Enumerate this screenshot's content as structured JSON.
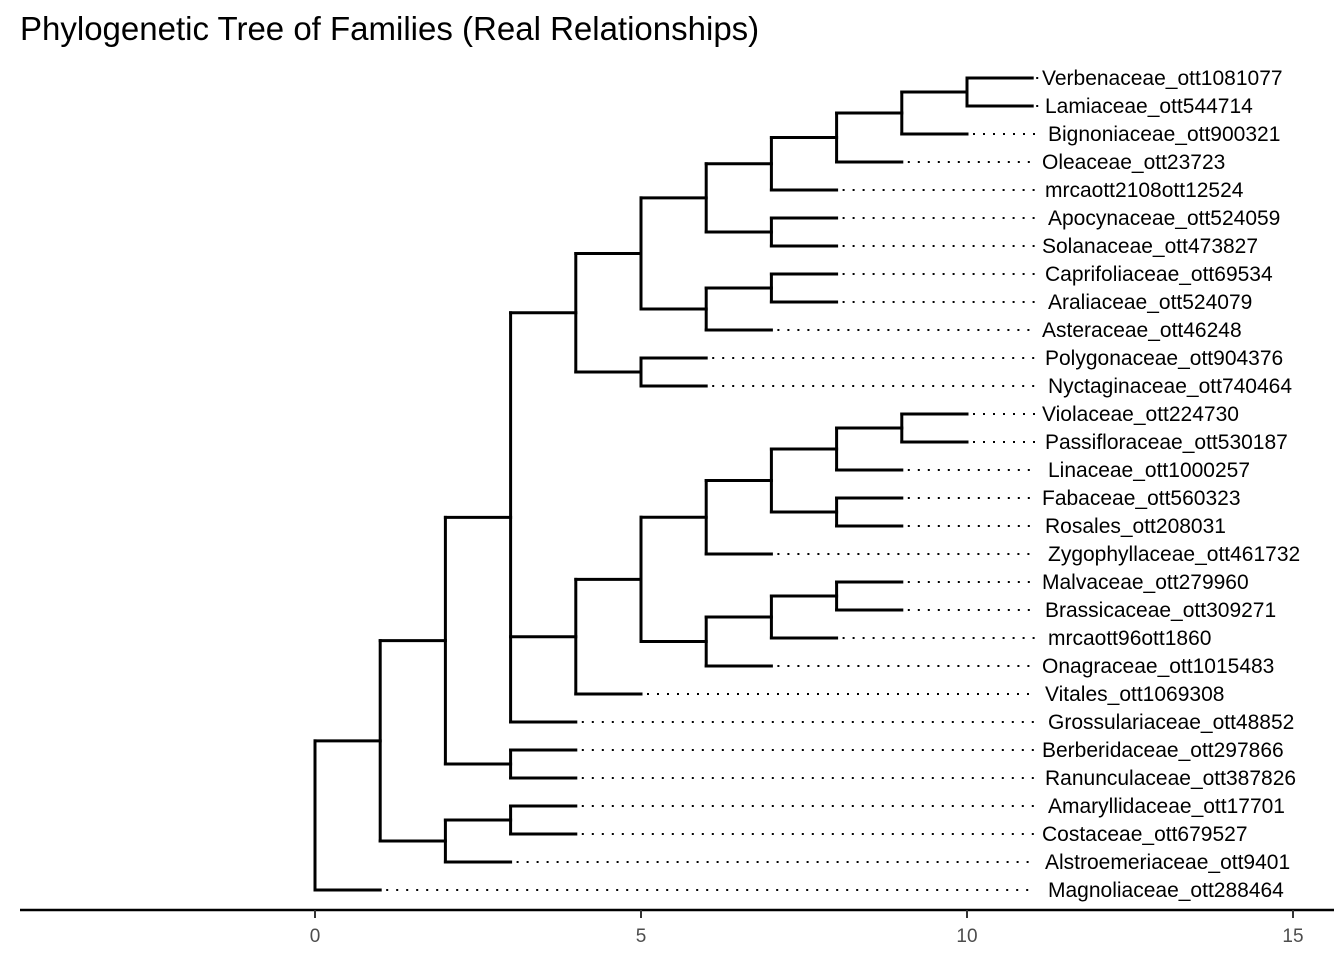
{
  "title": "Phylogenetic Tree of Families (Real Relationships)",
  "axis": {
    "x_range": [
      -4.5,
      15.5
    ],
    "ticks": [
      0,
      5,
      10,
      15
    ]
  },
  "tips": [
    "Verbenaceae_ott1081077",
    "Lamiaceae_ott544714",
    "Bignoniaceae_ott900321",
    "Oleaceae_ott23723",
    "mrcaott2108ott12524",
    "Apocynaceae_ott524059",
    "Solanaceae_ott473827",
    "Caprifoliaceae_ott69534",
    "Araliaceae_ott524079",
    "Asteraceae_ott46248",
    "Polygonaceae_ott904376",
    "Nyctaginaceae_ott740464",
    "Violaceae_ott224730",
    "Passifloraceae_ott530187",
    "Linaceae_ott1000257",
    "Fabaceae_ott560323",
    "Rosales_ott208031",
    "Zygophyllaceae_ott461732",
    "Malvaceae_ott279960",
    "Brassicaceae_ott309271",
    "mrcaott96ott1860",
    "Onagraceae_ott1015483",
    "Vitales_ott1069308",
    "Grossulariaceae_ott48852",
    "Berberidaceae_ott297866",
    "Ranunculaceae_ott387826",
    "Amaryllidaceae_ott17701",
    "Costaceae_ott679527",
    "Alstroemeriaceae_ott9401",
    "Magnoliaceae_ott288464"
  ],
  "tree": {
    "children": [
      {
        "children": [
          {
            "children": [
              {
                "children": [
                  {
                    "children": [
                      {
                        "children": [
                          {
                            "children": [
                              {
                                "children": [
                                  {
                                    "children": [
                                      {
                                        "children": [
                                          {
                                            "tip": 0
                                          },
                                          {
                                            "tip": 1
                                          }
                                        ]
                                      },
                                      {
                                        "tip": 2
                                      }
                                    ]
                                  },
                                  {
                                    "tip": 3
                                  }
                                ]
                              },
                              {
                                "tip": 4
                              }
                            ]
                          },
                          {
                            "children": [
                              {
                                "tip": 5
                              },
                              {
                                "tip": 6
                              }
                            ]
                          }
                        ]
                      },
                      {
                        "children": [
                          {
                            "children": [
                              {
                                "tip": 7
                              },
                              {
                                "tip": 8
                              }
                            ]
                          },
                          {
                            "tip": 9
                          }
                        ]
                      }
                    ]
                  },
                  {
                    "children": [
                      {
                        "tip": 10
                      },
                      {
                        "tip": 11
                      }
                    ]
                  }
                ]
              },
              {
                "children": [
                  {
                    "children": [
                      {
                        "children": [
                          {
                            "children": [
                              {
                                "children": [
                                  {
                                    "children": [
                                      {
                                        "tip": 12
                                      },
                                      {
                                        "tip": 13
                                      }
                                    ]
                                  },
                                  {
                                    "tip": 14
                                  }
                                ]
                              },
                              {
                                "children": [
                                  {
                                    "tip": 15
                                  },
                                  {
                                    "tip": 16
                                  }
                                ]
                              }
                            ]
                          },
                          {
                            "tip": 17
                          }
                        ]
                      },
                      {
                        "children": [
                          {
                            "children": [
                              {
                                "children": [
                                  {
                                    "tip": 18
                                  },
                                  {
                                    "tip": 19
                                  }
                                ]
                              },
                              {
                                "tip": 20
                              }
                            ]
                          },
                          {
                            "tip": 21
                          }
                        ]
                      }
                    ]
                  },
                  {
                    "tip": 22
                  }
                ]
              },
              {
                "tip": 23
              }
            ]
          },
          {
            "children": [
              {
                "tip": 24
              },
              {
                "tip": 25
              }
            ]
          }
        ]
      },
      {
        "children": [
          {
            "children": [
              {
                "tip": 26
              },
              {
                "tip": 27
              }
            ]
          },
          {
            "tip": 28
          }
        ]
      }
    ]
  },
  "root_outgroup_tip": 29
}
